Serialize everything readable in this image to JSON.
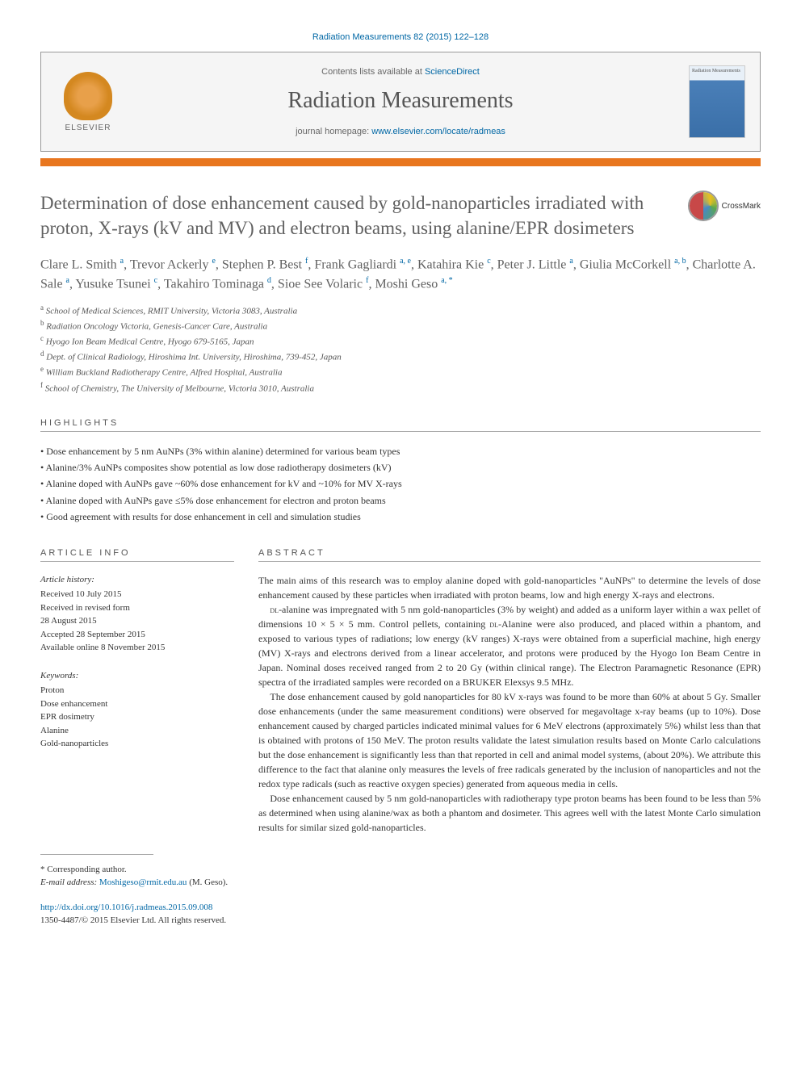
{
  "citation": "Radiation Measurements 82 (2015) 122–128",
  "header": {
    "contents_prefix": "Contents lists available at ",
    "contents_link": "ScienceDirect",
    "journal": "Radiation Measurements",
    "homepage_prefix": "journal homepage: ",
    "homepage_url": "www.elsevier.com/locate/radmeas",
    "publisher": "ELSEVIER",
    "cover_label": "Radiation Measurements"
  },
  "crossmark": "CrossMark",
  "title": "Determination of dose enhancement caused by gold-nanoparticles irradiated with proton, X-rays (kV and MV) and electron beams, using alanine/EPR dosimeters",
  "authors_html": "Clare L. Smith <sup>a</sup>, Trevor Ackerly <sup>e</sup>, Stephen P. Best <sup>f</sup>, Frank Gagliardi <sup>a, e</sup>, Katahira Kie <sup>c</sup>, Peter J. Little <sup>a</sup>, Giulia McCorkell <sup>a, b</sup>, Charlotte A. Sale <sup>a</sup>, Yusuke Tsunei <sup>c</sup>, Takahiro Tominaga <sup>d</sup>, Sioe See Volaric <sup>f</sup>, Moshi Geso <sup>a, *</sup>",
  "affiliations": [
    {
      "key": "a",
      "text": "School of Medical Sciences, RMIT University, Victoria 3083, Australia"
    },
    {
      "key": "b",
      "text": "Radiation Oncology Victoria, Genesis-Cancer Care, Australia"
    },
    {
      "key": "c",
      "text": "Hyogo Ion Beam Medical Centre, Hyogo 679-5165, Japan"
    },
    {
      "key": "d",
      "text": "Dept. of Clinical Radiology, Hiroshima Int. University, Hiroshima, 739-452, Japan"
    },
    {
      "key": "e",
      "text": "William Buckland Radiotherapy Centre, Alfred Hospital, Australia"
    },
    {
      "key": "f",
      "text": "School of Chemistry, The University of Melbourne, Victoria 3010, Australia"
    }
  ],
  "highlights_label": "HIGHLIGHTS",
  "highlights": [
    "Dose enhancement by 5 nm AuNPs (3% within alanine) determined for various beam types",
    "Alanine/3% AuNPs composites show potential as low dose radiotherapy dosimeters (kV)",
    "Alanine doped with AuNPs gave ~60% dose enhancement for kV and ~10% for MV X-rays",
    "Alanine doped with AuNPs gave ≤5% dose enhancement for electron and proton beams",
    "Good agreement with results for dose enhancement in cell and simulation studies"
  ],
  "article_info_label": "ARTICLE INFO",
  "abstract_label": "ABSTRACT",
  "history": {
    "head": "Article history:",
    "lines": [
      "Received 10 July 2015",
      "Received in revised form",
      "28 August 2015",
      "Accepted 28 September 2015",
      "Available online 8 November 2015"
    ]
  },
  "keywords": {
    "head": "Keywords:",
    "items": [
      "Proton",
      "Dose enhancement",
      "EPR dosimetry",
      "Alanine",
      "Gold-nanoparticles"
    ]
  },
  "abstract": [
    "The main aims of this research was to employ alanine doped with gold-nanoparticles \"AuNPs\" to determine the levels of dose enhancement caused by these particles when irradiated with proton beams, low and high energy X-rays and electrons.",
    "DL-alanine was impregnated with 5 nm gold-nanoparticles (3% by weight) and added as a uniform layer within a wax pellet of dimensions 10 × 5 × 5 mm. Control pellets, containing DL-Alanine were also produced, and placed within a phantom, and exposed to various types of radiations; low energy (kV ranges) X-rays were obtained from a superficial machine, high energy (MV) X-rays and electrons derived from a linear accelerator, and protons were produced by the Hyogo Ion Beam Centre in Japan. Nominal doses received ranged from 2 to 20 Gy (within clinical range). The Electron Paramagnetic Resonance (EPR) spectra of the irradiated samples were recorded on a BRUKER Elexsys 9.5 MHz.",
    "The dose enhancement caused by gold nanoparticles for 80 kV x-rays was found to be more than 60% at about 5 Gy. Smaller dose enhancements (under the same measurement conditions) were observed for megavoltage x-ray beams (up to 10%). Dose enhancement caused by charged particles indicated minimal values for 6 MeV electrons (approximately 5%) whilst less than that is obtained with protons of 150 MeV. The proton results validate the latest simulation results based on Monte Carlo calculations but the dose enhancement is significantly less than that reported in cell and animal model systems, (about 20%). We attribute this difference to the fact that alanine only measures the levels of free radicals generated by the inclusion of nanoparticles and not the redox type radicals (such as reactive oxygen species) generated from aqueous media in cells.",
    "Dose enhancement caused by 5 nm gold-nanoparticles with radiotherapy type proton beams has been found to be less than 5% as determined when using alanine/wax as both a phantom and dosimeter. This agrees well with the latest Monte Carlo simulation results for similar sized gold-nanoparticles."
  ],
  "corresponding": {
    "star": "*",
    "label": "Corresponding author.",
    "email_label": "E-mail address:",
    "email": "Moshigeso@rmit.edu.au",
    "name_suffix": "(M. Geso)."
  },
  "doi": {
    "url": "http://dx.doi.org/10.1016/j.radmeas.2015.09.008",
    "issn_line": "1350-4487/© 2015 Elsevier Ltd. All rights reserved."
  }
}
